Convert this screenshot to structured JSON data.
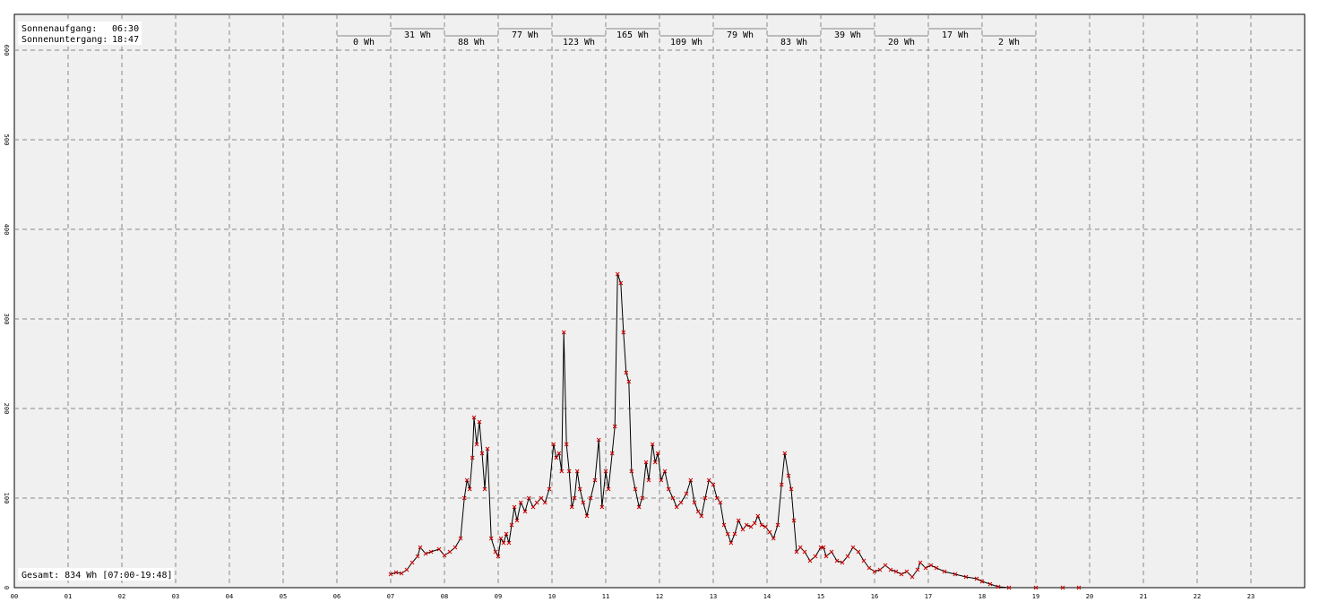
{
  "chart_data": {
    "type": "line",
    "sunrise_label": "Sonnenaufgang:",
    "sunrise": "06:30",
    "sunset_label": "Sonnenuntergang:",
    "sunset": "18:47",
    "total": "Gesamt: 834 Wh [07:00-19:48]",
    "xlim": [
      0,
      24
    ],
    "xticks": [
      {
        "value": 0,
        "label": "00"
      },
      {
        "value": 1,
        "label": "01"
      },
      {
        "value": 2,
        "label": "02"
      },
      {
        "value": 3,
        "label": "03"
      },
      {
        "value": 4,
        "label": "04"
      },
      {
        "value": 5,
        "label": "05"
      },
      {
        "value": 6,
        "label": "06"
      },
      {
        "value": 7,
        "label": "07"
      },
      {
        "value": 8,
        "label": "08"
      },
      {
        "value": 9,
        "label": "09"
      },
      10,
      11,
      12,
      13,
      14,
      15,
      16,
      17,
      18,
      19,
      20,
      21,
      22,
      23
    ],
    "ylim": [
      0,
      640
    ],
    "yticks": [
      0,
      100,
      200,
      300,
      400,
      500,
      600
    ],
    "grid": true,
    "color": "#000000",
    "marker_color": "#cc0000",
    "x": [
      7.0,
      7.1,
      7.2,
      7.3,
      7.4,
      7.5,
      7.55,
      7.65,
      7.75,
      7.9,
      8.0,
      8.1,
      8.2,
      8.3,
      8.37,
      8.42,
      8.47,
      8.52,
      8.55,
      8.6,
      8.65,
      8.7,
      8.75,
      8.8,
      8.87,
      8.95,
      9.0,
      9.05,
      9.1,
      9.15,
      9.2,
      9.25,
      9.3,
      9.35,
      9.42,
      9.5,
      9.57,
      9.65,
      9.72,
      9.8,
      9.87,
      9.95,
      10.03,
      10.08,
      10.13,
      10.18,
      10.22,
      10.27,
      10.32,
      10.37,
      10.42,
      10.47,
      10.52,
      10.58,
      10.65,
      10.72,
      10.8,
      10.87,
      10.93,
      11.0,
      11.05,
      11.12,
      11.17,
      11.22,
      11.28,
      11.33,
      11.38,
      11.43,
      11.48,
      11.55,
      11.62,
      11.68,
      11.75,
      11.8,
      11.87,
      11.92,
      11.97,
      12.03,
      12.1,
      12.17,
      12.25,
      12.32,
      12.4,
      12.5,
      12.58,
      12.65,
      12.72,
      12.78,
      12.85,
      12.92,
      13.0,
      13.07,
      13.13,
      13.2,
      13.27,
      13.33,
      13.4,
      13.47,
      13.55,
      13.62,
      13.7,
      13.77,
      13.83,
      13.9,
      13.97,
      14.05,
      14.12,
      14.2,
      14.27,
      14.33,
      14.4,
      14.45,
      14.5,
      14.55,
      14.62,
      14.7,
      14.8,
      14.9,
      15.0,
      15.05,
      15.1,
      15.2,
      15.3,
      15.4,
      15.5,
      15.6,
      15.7,
      15.8,
      15.9,
      16.0,
      16.1,
      16.2,
      16.3,
      16.4,
      16.5,
      16.6,
      16.7,
      16.8,
      16.85,
      16.95,
      17.05,
      17.15,
      17.3,
      17.5,
      17.7,
      17.9,
      18.0,
      18.15,
      18.3,
      18.5,
      19.0,
      19.5,
      19.8
    ],
    "values": [
      15,
      17,
      16,
      20,
      28,
      35,
      45,
      38,
      40,
      43,
      36,
      40,
      45,
      55,
      100,
      120,
      110,
      145,
      190,
      160,
      185,
      150,
      110,
      155,
      55,
      40,
      35,
      55,
      50,
      60,
      50,
      70,
      90,
      75,
      95,
      85,
      100,
      90,
      95,
      100,
      95,
      110,
      160,
      145,
      150,
      130,
      285,
      160,
      130,
      90,
      100,
      130,
      110,
      95,
      80,
      100,
      120,
      165,
      90,
      130,
      110,
      150,
      180,
      350,
      340,
      285,
      240,
      230,
      130,
      110,
      90,
      100,
      140,
      120,
      160,
      140,
      150,
      120,
      130,
      110,
      100,
      90,
      95,
      105,
      120,
      95,
      85,
      80,
      100,
      120,
      115,
      100,
      95,
      70,
      60,
      50,
      60,
      75,
      65,
      70,
      68,
      72,
      80,
      70,
      68,
      62,
      55,
      70,
      115,
      150,
      125,
      110,
      75,
      40,
      45,
      40,
      30,
      35,
      45,
      45,
      35,
      40,
      30,
      28,
      35,
      45,
      40,
      30,
      22,
      18,
      20,
      25,
      20,
      18,
      15,
      18,
      12,
      20,
      28,
      22,
      25,
      22,
      18,
      15,
      12,
      10,
      7,
      4,
      1,
      0,
      0,
      0,
      0
    ],
    "hourly_energy": {
      "hours": [
        6,
        7,
        8,
        9,
        10,
        11,
        12,
        13,
        14,
        15,
        16,
        17,
        18
      ],
      "values": [
        0,
        31,
        88,
        77,
        123,
        165,
        109,
        79,
        83,
        39,
        20,
        17,
        2
      ],
      "value_labels": [
        "0 Wh",
        "31 Wh",
        "88 Wh",
        "77 Wh",
        "123 Wh",
        "165 Wh",
        "109 Wh",
        "79 Wh",
        "83 Wh",
        "39 Wh",
        "20 Wh",
        "17 Wh",
        "2 Wh"
      ]
    }
  }
}
